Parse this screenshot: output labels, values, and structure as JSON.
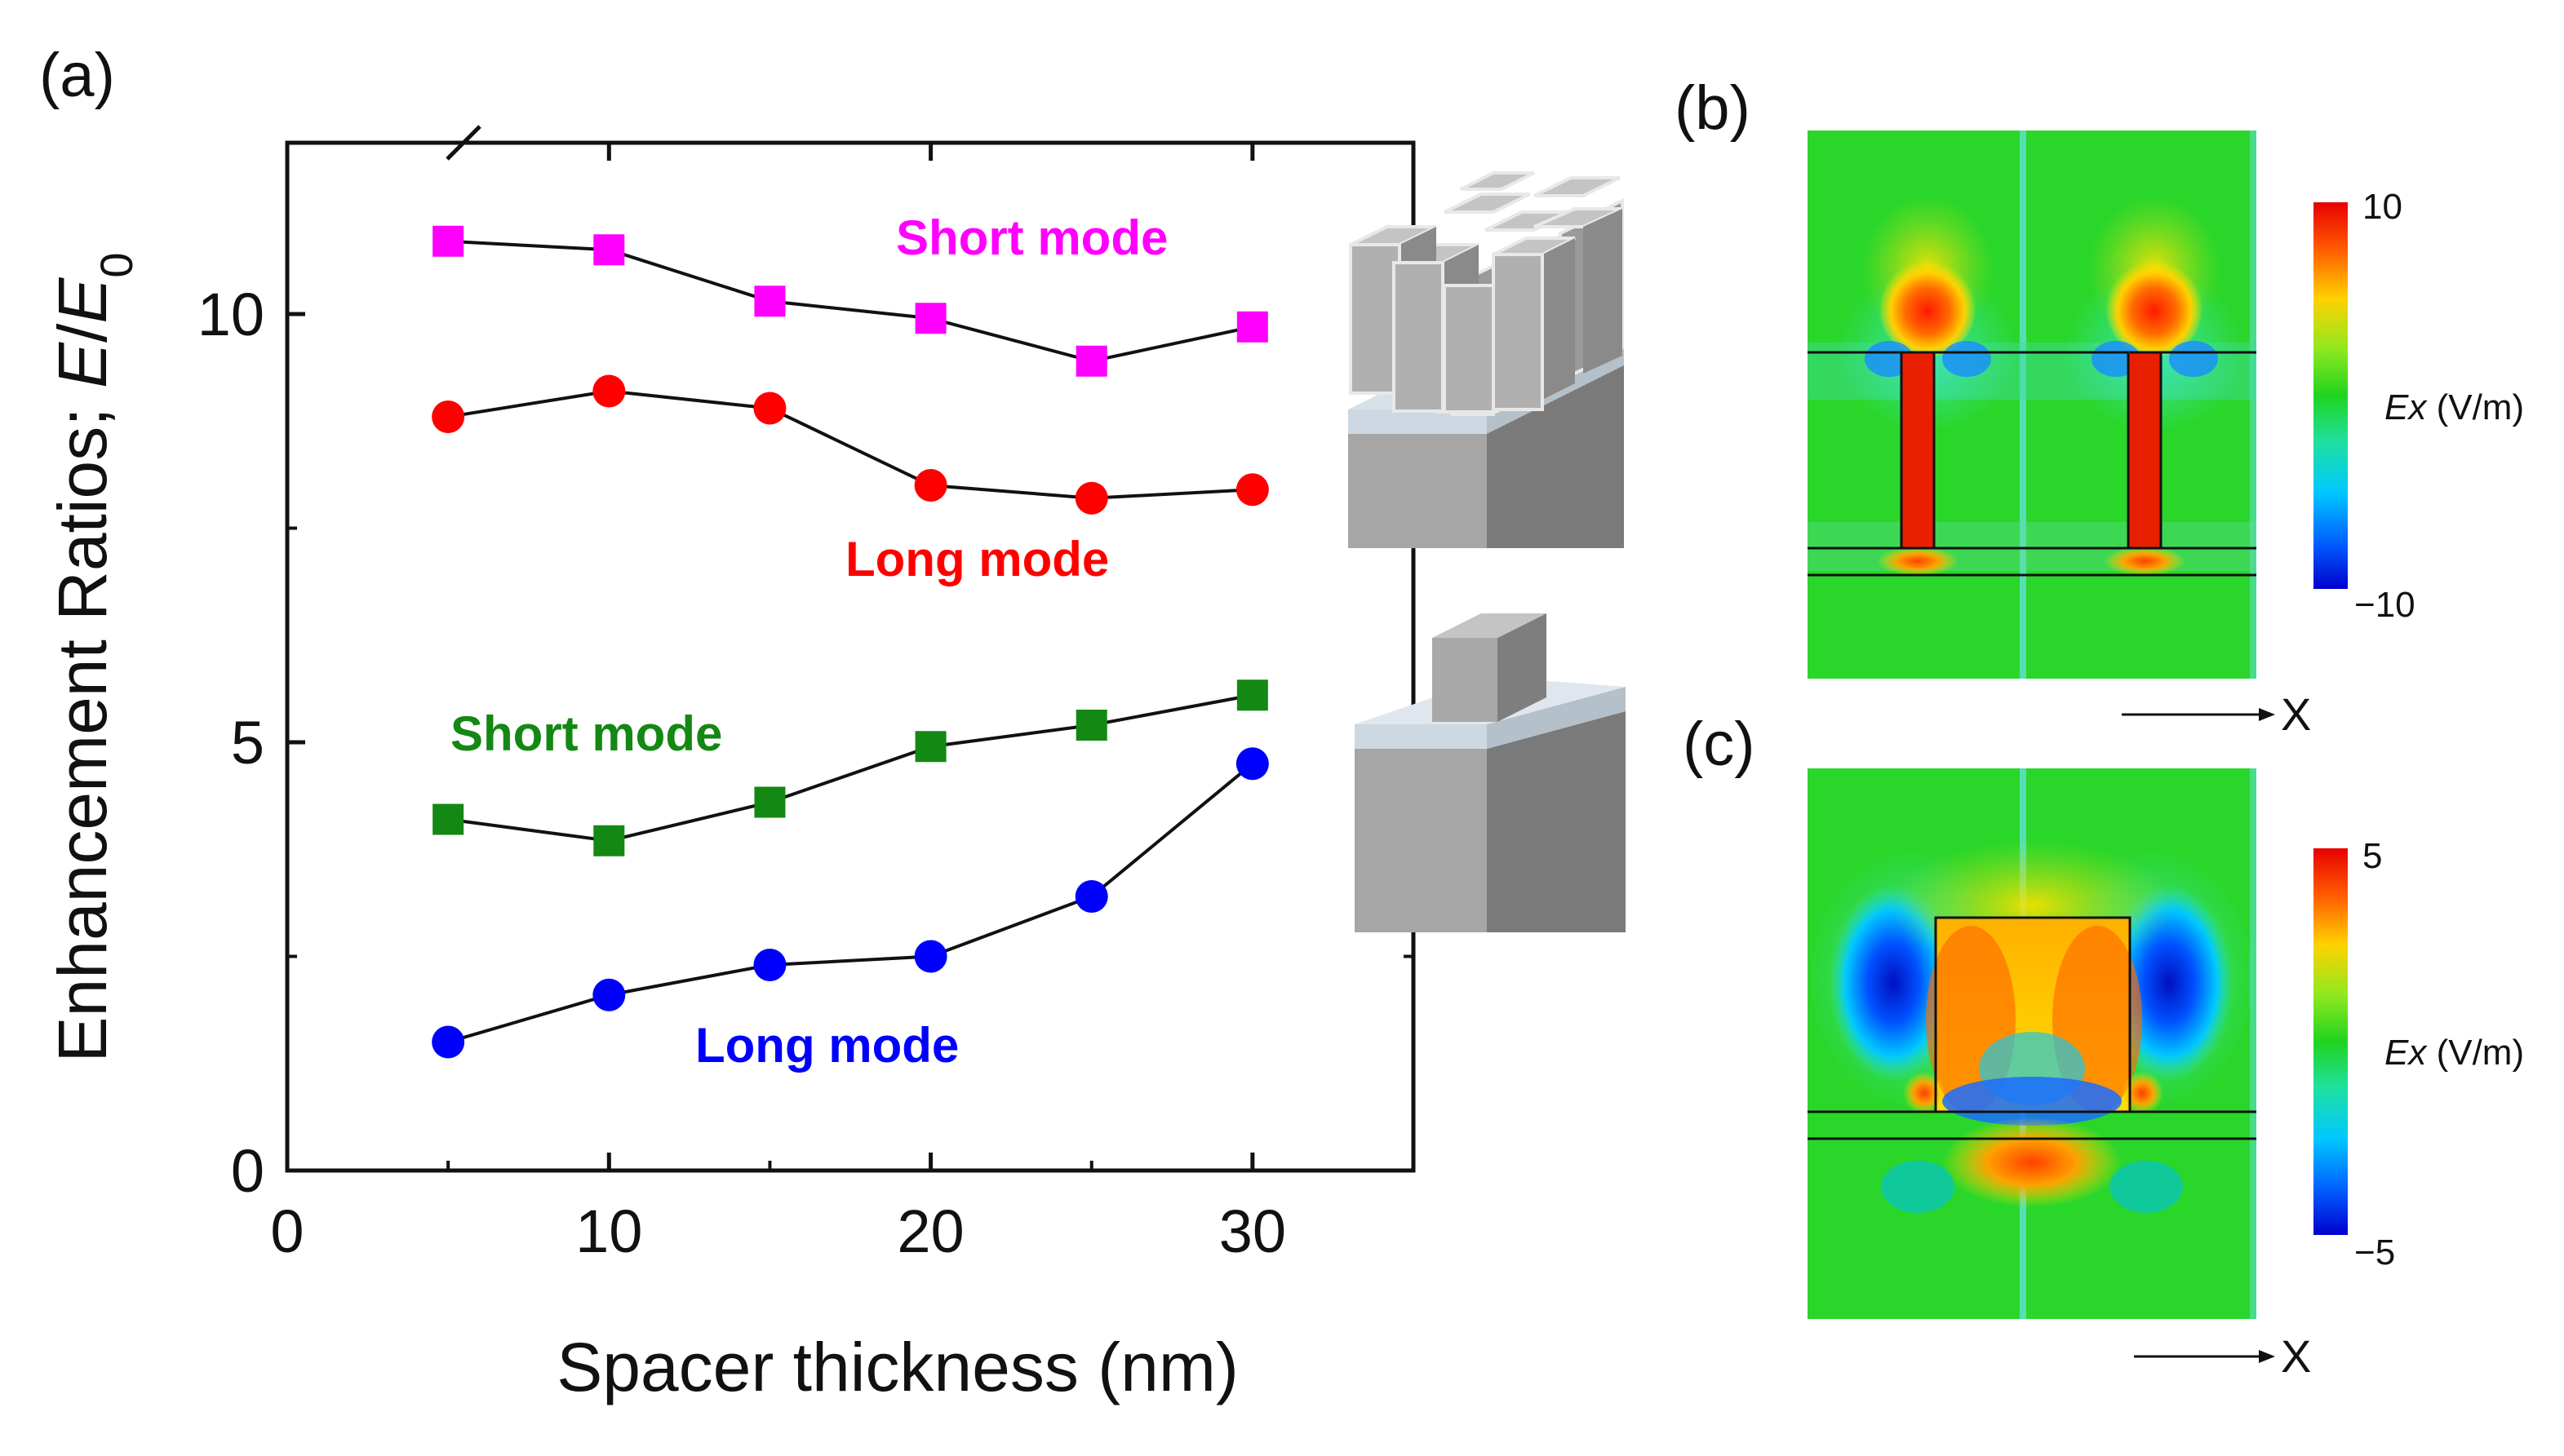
{
  "panel_labels": {
    "a": "(a)",
    "b": "(b)",
    "c": "(c)"
  },
  "chart_data": {
    "type": "line",
    "title": "",
    "xlabel": "Spacer thickness (nm)",
    "ylabel_prefix": "Enhancement Ratios; ",
    "ylabel_E": "E",
    "ylabel_slash": "/",
    "ylabel_E0": "E",
    "ylabel_sub": "0",
    "xlim": [
      0,
      35
    ],
    "ylim": [
      0,
      12
    ],
    "x_ticks": [
      0,
      10,
      20,
      30
    ],
    "x_tick_labels": [
      "0",
      "10",
      "20",
      "30"
    ],
    "y_ticks": [
      0,
      5,
      10
    ],
    "y_tick_labels": [
      "0",
      "5",
      "10"
    ],
    "x": [
      5,
      10,
      15,
      20,
      25,
      30
    ],
    "series": [
      {
        "name": "Short mode",
        "group": "pillar-array",
        "color": "#ff00ff",
        "marker": "square",
        "values": [
          10.85,
          10.75,
          10.15,
          9.95,
          9.45,
          9.85
        ]
      },
      {
        "name": "Long mode",
        "group": "pillar-array",
        "color": "#ff0000",
        "marker": "circle",
        "values": [
          8.8,
          9.1,
          8.9,
          8.0,
          7.85,
          7.95
        ]
      },
      {
        "name": "Short mode",
        "group": "single-cube",
        "color": "#138813",
        "marker": "square",
        "values": [
          4.1,
          3.85,
          4.3,
          4.95,
          5.2,
          5.55
        ]
      },
      {
        "name": "Long mode",
        "group": "single-cube",
        "color": "#0000ff",
        "marker": "circle",
        "values": [
          1.5,
          2.05,
          2.4,
          2.5,
          3.2,
          4.75
        ]
      }
    ]
  },
  "field_maps": {
    "b": {
      "colorbar_max": "10",
      "colorbar_min": "−10",
      "quantity_italic": "Ex",
      "quantity_unit": " (V/m)",
      "axis_label": "X"
    },
    "c": {
      "colorbar_max": "5",
      "colorbar_min": "−5",
      "quantity_italic": "Ex",
      "quantity_unit": " (V/m)",
      "axis_label": "X"
    }
  },
  "colors": {
    "field_bg": "#2ad62a",
    "hot": "#ff2a00",
    "cold": "#0033ff",
    "mid": "#ffe000"
  }
}
